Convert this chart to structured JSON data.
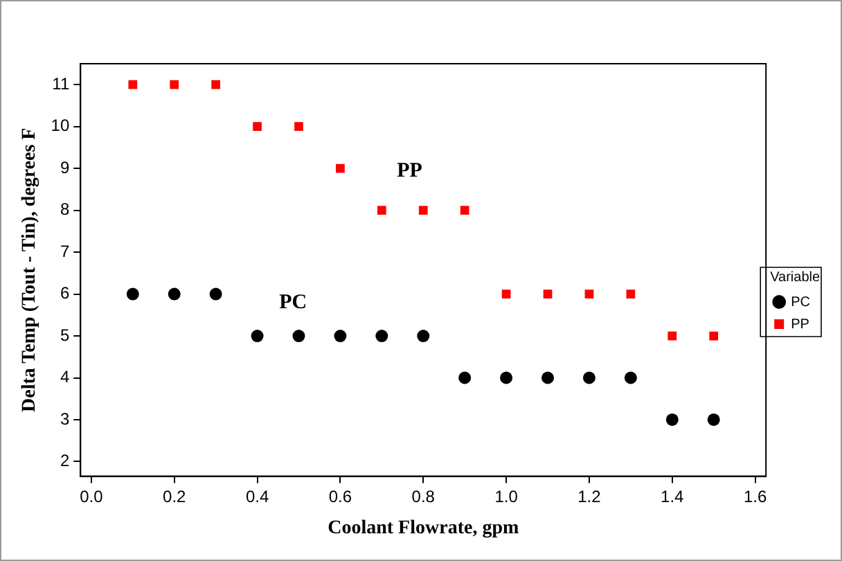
{
  "chart_data": {
    "type": "scatter",
    "xlabel": "Coolant Flowrate, gpm",
    "ylabel": "Delta Temp (Tout - Tin), degrees F",
    "legend_title": "Variable",
    "legend": "right",
    "grid": false,
    "x": [
      0.1,
      0.2,
      0.3,
      0.4,
      0.5,
      0.6,
      0.7,
      0.8,
      0.9,
      1.0,
      1.1,
      1.2,
      1.3,
      1.4,
      1.5
    ],
    "series": [
      {
        "name": "PC",
        "color": "#000000",
        "marker": "circle",
        "values": [
          6,
          6,
          6,
          5,
          5,
          5,
          5,
          5,
          4,
          4,
          4,
          4,
          4,
          3,
          3
        ]
      },
      {
        "name": "PP",
        "color": "#ff0000",
        "marker": "square",
        "values": [
          11,
          11,
          11,
          10,
          10,
          9,
          8,
          8,
          8,
          6,
          6,
          6,
          6,
          5,
          5
        ]
      }
    ],
    "xlim": [
      -0.026,
      1.626
    ],
    "ylim": [
      1.65,
      11.5
    ],
    "xticks": [
      {
        "value": 0,
        "label": "0.0"
      },
      {
        "value": 0.2,
        "label": "0.2"
      },
      {
        "value": 0.4,
        "label": "0.4"
      },
      {
        "value": 0.6,
        "label": "0.6"
      },
      {
        "value": 0.8,
        "label": "0.8"
      },
      {
        "value": 1,
        "label": "1.0"
      },
      {
        "value": 1.2,
        "label": "1.2"
      },
      {
        "value": 1.4,
        "label": "1.4"
      },
      {
        "value": 1.6,
        "label": "1.6"
      }
    ],
    "yticks": [
      2,
      3,
      4,
      5,
      6,
      7,
      8,
      9,
      10,
      11
    ],
    "annotations": [
      "PP",
      "PC"
    ]
  }
}
